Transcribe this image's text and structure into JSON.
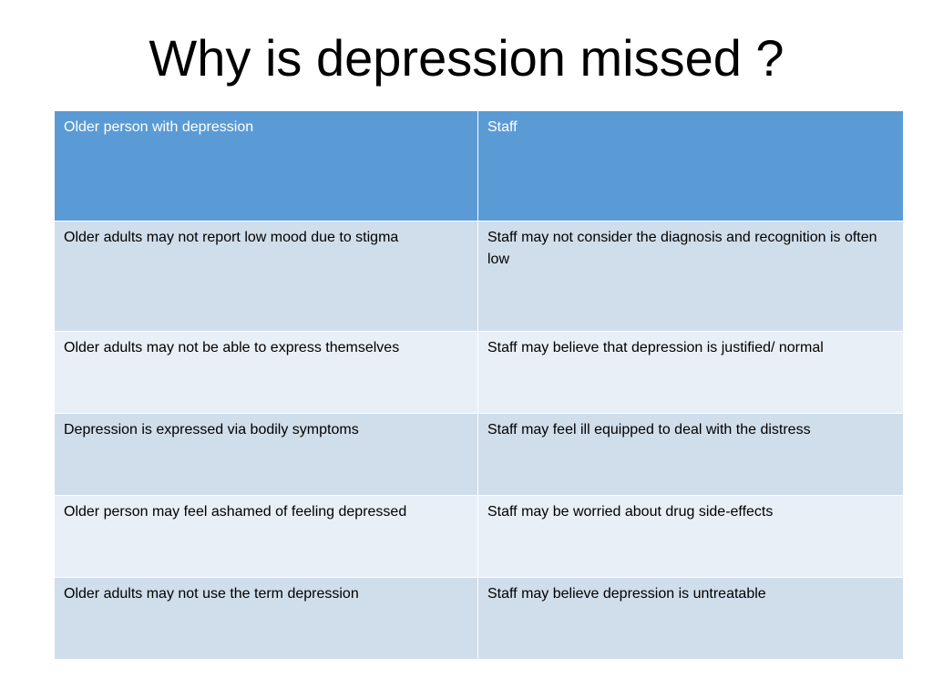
{
  "title": "Why is depression missed ?",
  "table": {
    "headers": [
      "Older person with depression",
      "Staff"
    ],
    "rows": [
      [
        "Older adults may not report low mood due to stigma",
        "Staff may not consider the diagnosis and recognition is often low"
      ],
      [
        "Older adults may not be able to express themselves",
        "Staff may believe that depression is justified/ normal"
      ],
      [
        "Depression is expressed via bodily symptoms",
        "Staff may feel ill equipped to deal with the distress"
      ],
      [
        "Older person may feel ashamed of feeling depressed",
        "Staff may be worried about drug side-effects"
      ],
      [
        "Older adults may not use the term depression",
        "Staff may believe depression is untreatable"
      ]
    ]
  },
  "colors": {
    "header_bg": "#5b9bd5",
    "row_dark_bg": "#d0ddeb",
    "row_light_bg": "#e9eff7",
    "header_text": "#ffffff",
    "body_text": "#000000"
  }
}
